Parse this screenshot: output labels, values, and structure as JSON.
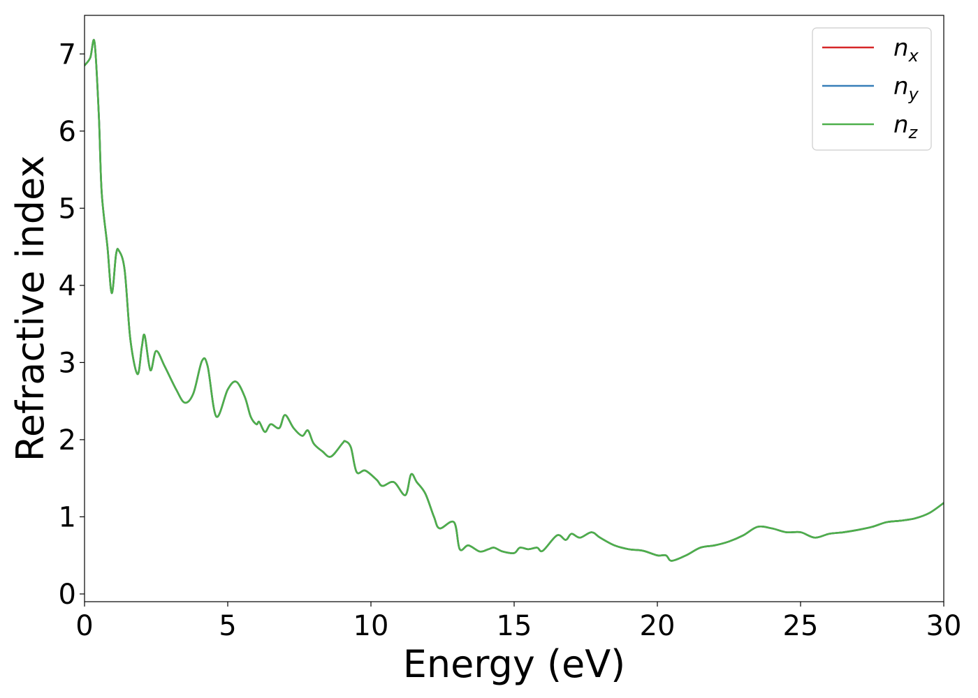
{
  "chart_data": {
    "type": "line",
    "xlabel": "Energy (eV)",
    "ylabel": "Refractive index",
    "xlim": [
      0,
      30
    ],
    "ylim": [
      -0.1,
      7.5
    ],
    "xticks": [
      {
        "value": 0,
        "label": "0"
      },
      {
        "value": 5,
        "label": "5"
      },
      {
        "value": 10,
        "label": "10"
      },
      {
        "value": 15,
        "label": "15"
      },
      {
        "value": 20,
        "label": "20"
      },
      {
        "value": 25,
        "label": "25"
      },
      {
        "value": 30,
        "label": "30"
      }
    ],
    "yticks": [
      {
        "value": 0,
        "label": "0"
      },
      {
        "value": 1,
        "label": "1"
      },
      {
        "value": 2,
        "label": "2"
      },
      {
        "value": 3,
        "label": "3"
      },
      {
        "value": 4,
        "label": "4"
      },
      {
        "value": 5,
        "label": "5"
      },
      {
        "value": 6,
        "label": "6"
      },
      {
        "value": 7,
        "label": "7"
      }
    ],
    "grid": false,
    "legend_position": "top-right",
    "x": [
      0,
      0.2,
      0.35,
      0.5,
      0.6,
      0.8,
      0.95,
      1.1,
      1.2,
      1.4,
      1.6,
      1.85,
      2.0,
      2.1,
      2.3,
      2.5,
      2.8,
      3.2,
      3.5,
      3.8,
      4.1,
      4.3,
      4.6,
      5.0,
      5.3,
      5.6,
      5.8,
      6.0,
      6.1,
      6.3,
      6.5,
      6.8,
      7.0,
      7.3,
      7.6,
      7.8,
      8.0,
      8.3,
      8.6,
      9.0,
      9.1,
      9.3,
      9.5,
      9.8,
      10.2,
      10.4,
      10.8,
      11.2,
      11.4,
      11.6,
      11.9,
      12.2,
      12.4,
      12.9,
      13.1,
      13.4,
      13.8,
      14.1,
      14.3,
      14.6,
      15.0,
      15.2,
      15.5,
      15.8,
      16.0,
      16.5,
      16.8,
      17.0,
      17.3,
      17.7,
      18.0,
      18.5,
      19.0,
      19.5,
      20.0,
      20.3,
      20.5,
      21.0,
      21.5,
      22.0,
      22.5,
      23.0,
      23.5,
      24.0,
      24.5,
      25.0,
      25.5,
      26.0,
      26.5,
      27.0,
      27.5,
      28.0,
      28.5,
      29.0,
      29.5,
      30.0
    ],
    "series": [
      {
        "name": "n_x",
        "label_base": "n",
        "label_sub": "x",
        "color": "#d62728",
        "values": [
          6.85,
          6.95,
          7.15,
          6.2,
          5.2,
          4.5,
          3.9,
          4.4,
          4.45,
          4.2,
          3.3,
          2.85,
          3.2,
          3.35,
          2.9,
          3.15,
          2.95,
          2.65,
          2.48,
          2.6,
          3.02,
          2.95,
          2.3,
          2.65,
          2.75,
          2.55,
          2.3,
          2.2,
          2.23,
          2.1,
          2.2,
          2.15,
          2.32,
          2.15,
          2.05,
          2.12,
          1.95,
          1.85,
          1.78,
          1.95,
          1.98,
          1.9,
          1.58,
          1.6,
          1.48,
          1.4,
          1.45,
          1.28,
          1.55,
          1.45,
          1.3,
          1.0,
          0.85,
          0.93,
          0.58,
          0.63,
          0.55,
          0.58,
          0.6,
          0.55,
          0.53,
          0.6,
          0.58,
          0.6,
          0.56,
          0.76,
          0.7,
          0.78,
          0.73,
          0.8,
          0.73,
          0.63,
          0.58,
          0.56,
          0.5,
          0.5,
          0.43,
          0.5,
          0.6,
          0.63,
          0.68,
          0.76,
          0.87,
          0.85,
          0.8,
          0.8,
          0.73,
          0.78,
          0.8,
          0.83,
          0.87,
          0.93,
          0.95,
          0.98,
          1.05,
          1.18
        ]
      },
      {
        "name": "n_y",
        "label_base": "n",
        "label_sub": "y",
        "color": "#377eb8",
        "values": [
          6.85,
          6.95,
          7.15,
          6.2,
          5.2,
          4.5,
          3.9,
          4.4,
          4.45,
          4.2,
          3.3,
          2.85,
          3.2,
          3.35,
          2.9,
          3.15,
          2.95,
          2.65,
          2.48,
          2.6,
          3.02,
          2.95,
          2.3,
          2.65,
          2.75,
          2.55,
          2.3,
          2.2,
          2.23,
          2.1,
          2.2,
          2.15,
          2.32,
          2.15,
          2.05,
          2.12,
          1.95,
          1.85,
          1.78,
          1.95,
          1.98,
          1.9,
          1.58,
          1.6,
          1.48,
          1.4,
          1.45,
          1.28,
          1.55,
          1.45,
          1.3,
          1.0,
          0.85,
          0.93,
          0.58,
          0.63,
          0.55,
          0.58,
          0.6,
          0.55,
          0.53,
          0.6,
          0.58,
          0.6,
          0.56,
          0.76,
          0.7,
          0.78,
          0.73,
          0.8,
          0.73,
          0.63,
          0.58,
          0.56,
          0.5,
          0.5,
          0.43,
          0.5,
          0.6,
          0.63,
          0.68,
          0.76,
          0.87,
          0.85,
          0.8,
          0.8,
          0.73,
          0.78,
          0.8,
          0.83,
          0.87,
          0.93,
          0.95,
          0.98,
          1.05,
          1.18
        ]
      },
      {
        "name": "n_z",
        "label_base": "n",
        "label_sub": "z",
        "color": "#4daf4a",
        "values": [
          6.85,
          6.95,
          7.15,
          6.2,
          5.2,
          4.5,
          3.9,
          4.4,
          4.45,
          4.2,
          3.3,
          2.85,
          3.2,
          3.35,
          2.9,
          3.15,
          2.95,
          2.65,
          2.48,
          2.6,
          3.02,
          2.95,
          2.3,
          2.65,
          2.75,
          2.55,
          2.3,
          2.2,
          2.23,
          2.1,
          2.2,
          2.15,
          2.32,
          2.15,
          2.05,
          2.12,
          1.95,
          1.85,
          1.78,
          1.95,
          1.98,
          1.9,
          1.58,
          1.6,
          1.48,
          1.4,
          1.45,
          1.28,
          1.55,
          1.45,
          1.3,
          1.0,
          0.85,
          0.93,
          0.58,
          0.63,
          0.55,
          0.58,
          0.6,
          0.55,
          0.53,
          0.6,
          0.58,
          0.6,
          0.56,
          0.76,
          0.7,
          0.78,
          0.73,
          0.8,
          0.73,
          0.63,
          0.58,
          0.56,
          0.5,
          0.5,
          0.43,
          0.5,
          0.6,
          0.63,
          0.68,
          0.76,
          0.87,
          0.85,
          0.8,
          0.8,
          0.73,
          0.78,
          0.8,
          0.83,
          0.87,
          0.93,
          0.95,
          0.98,
          1.05,
          1.18
        ]
      }
    ]
  }
}
